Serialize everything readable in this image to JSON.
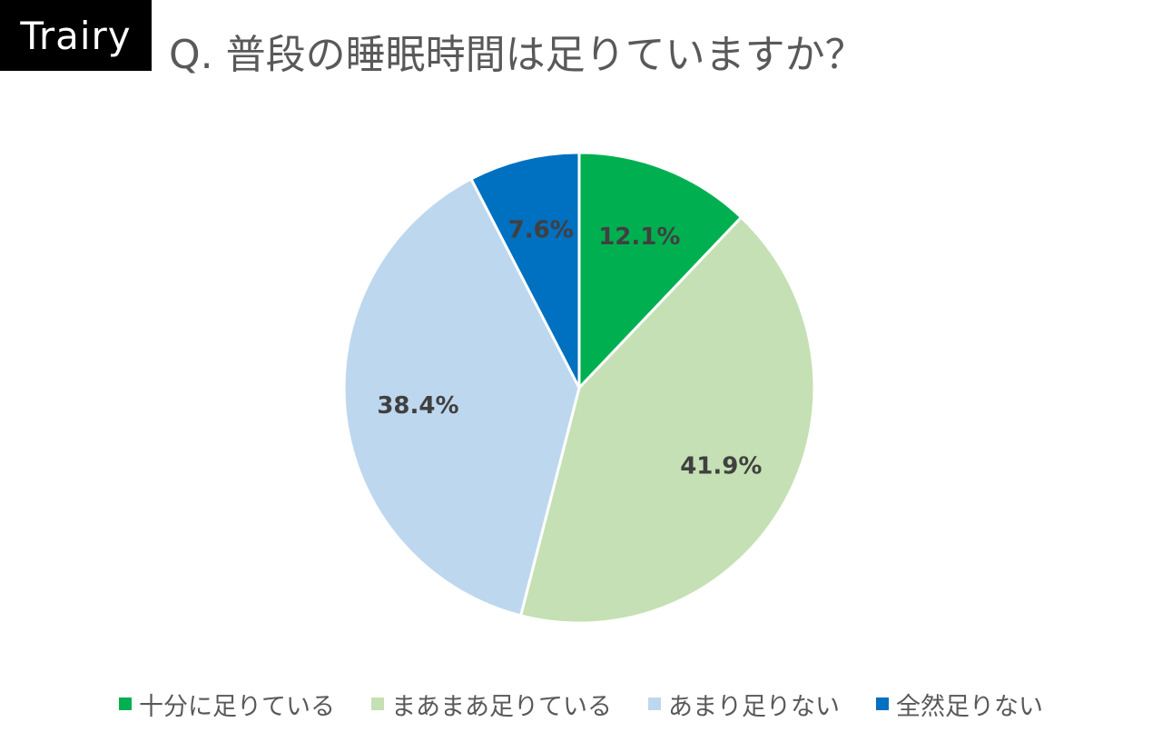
{
  "brand": {
    "logo_text": "Trairy"
  },
  "chart_data": {
    "type": "pie",
    "title": "Q. 普段の睡眠時間は足りていますか？",
    "legend_position": "bottom",
    "slices": [
      {
        "label": "十分に足りている",
        "value": 12.1,
        "display": "12.1%",
        "color": "#00B050"
      },
      {
        "label": "まあまあ足りている",
        "value": 41.9,
        "display": "41.9%",
        "color": "#C5E0B4"
      },
      {
        "label": "あまり足りない",
        "value": 38.4,
        "display": "38.4%",
        "color": "#BDD7EE"
      },
      {
        "label": "全然足りない",
        "value": 7.6,
        "display": "7.6%",
        "color": "#0070C0"
      }
    ]
  }
}
